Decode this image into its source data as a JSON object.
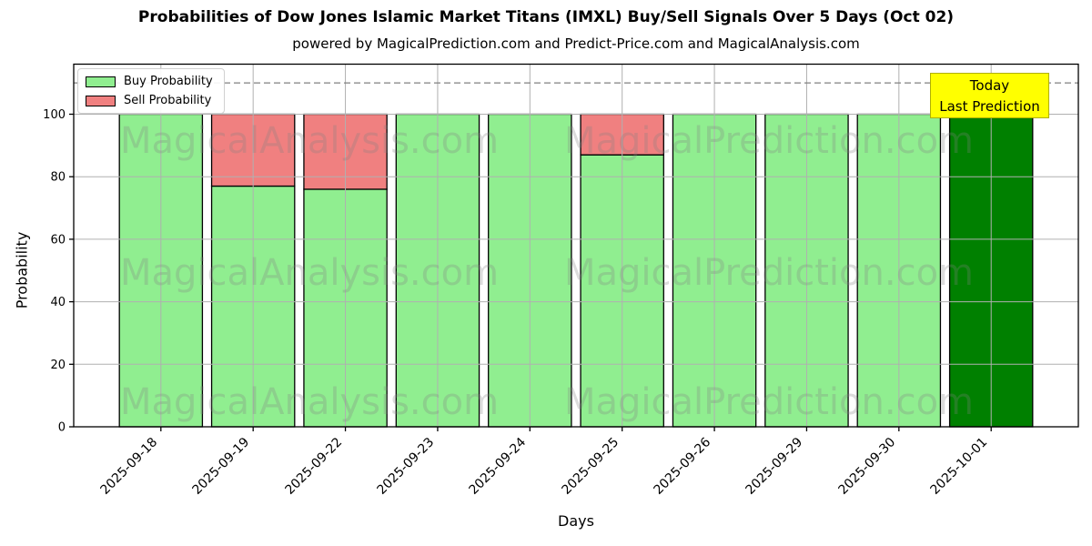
{
  "chart": {
    "title": "Probabilities of Dow Jones Islamic Market Titans (IMXL) Buy/Sell Signals Over 5 Days (Oct 02)",
    "subtitle": "powered by MagicalPrediction.com and Predict-Price.com and MagicalAnalysis.com",
    "xlabel": "Days",
    "ylabel": "Probability",
    "legend": {
      "buy": "Buy Probability",
      "sell": "Sell Probability"
    },
    "annotation": {
      "line1": "Today",
      "line2": "Last Prediction"
    },
    "watermarks": [
      "MagicalAnalysis.com",
      "MagicalPrediction.com"
    ],
    "colors": {
      "buy": "#90EE90",
      "sell": "#F08080",
      "today": "#008000",
      "bar_edge": "#000000",
      "grid": "#b0b0b0",
      "dashed_line": "#808080",
      "annotation_bg": "#FFFF00",
      "annotation_border": "#b0b000"
    }
  },
  "chart_data": {
    "type": "bar",
    "stacked": true,
    "title": "Probabilities of Dow Jones Islamic Market Titans (IMXL) Buy/Sell Signals Over 5 Days (Oct 02)",
    "subtitle": "powered by MagicalPrediction.com and Predict-Price.com and MagicalAnalysis.com",
    "xlabel": "Days",
    "ylabel": "Probability",
    "categories": [
      "2025-09-18",
      "2025-09-19",
      "2025-09-22",
      "2025-09-23",
      "2025-09-24",
      "2025-09-25",
      "2025-09-26",
      "2025-09-29",
      "2025-09-30",
      "2025-10-01"
    ],
    "series": [
      {
        "name": "Buy Probability",
        "color": "#90EE90",
        "values": [
          100,
          77,
          76,
          100,
          100,
          87,
          100,
          100,
          100,
          100
        ]
      },
      {
        "name": "Sell Probability",
        "color": "#F08080",
        "values": [
          0,
          23,
          24,
          0,
          0,
          13,
          0,
          0,
          0,
          0
        ]
      }
    ],
    "today_index": 9,
    "today_bar_color": "#008000",
    "today_bar_value": 100,
    "yticks": [
      0,
      20,
      40,
      60,
      80,
      100
    ],
    "ylim": [
      0,
      116
    ],
    "dashed_line_y": 110,
    "grid": true,
    "legend_position": "upper left",
    "annotation": "Today Last Prediction"
  }
}
